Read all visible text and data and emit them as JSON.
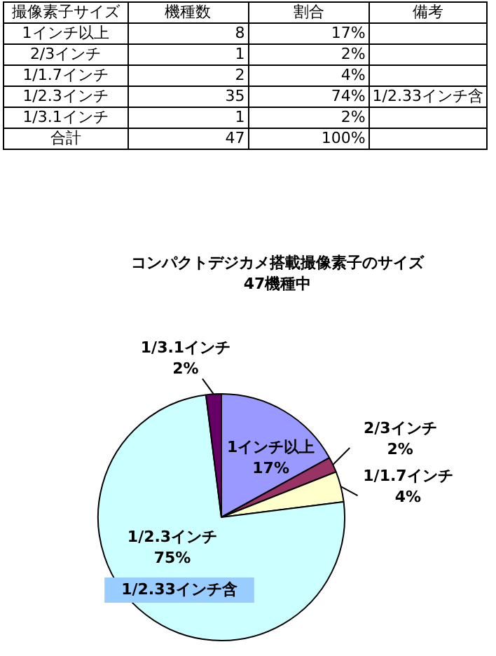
{
  "chart_data": [
    {
      "type": "other",
      "categories": [
        "撮像素子サイズ",
        "機種数",
        "割合",
        "備考"
      ],
      "annotations": [
        "1インチ以上",
        "8",
        "17%",
        null,
        "2/3インチ",
        "1",
        "2%",
        null,
        "1/1.7インチ",
        "2",
        "4%",
        null,
        "1/2.3インチ",
        "35",
        "74%",
        "1/2.33インチ含",
        "1/3.1インチ",
        "1",
        "2%",
        null,
        "合計",
        "47",
        "100%",
        null
      ]
    },
    {
      "type": "pie",
      "title": "コンパクトデジカメ搭載撮像素子のサイズ",
      "subtitle": "47機種中",
      "categories": [
        "1インチ以上",
        "2/3インチ",
        "1/1.7インチ",
        "1/2.3インチ",
        "1/3.1インチ"
      ],
      "values": [
        17,
        2,
        4,
        75,
        2
      ],
      "value_labels": [
        "17%",
        "2%",
        "4%",
        "75%",
        "2%"
      ],
      "colors": [
        "#9999ff",
        "#993366",
        "#ffffcc",
        "#ccffff",
        "#660066"
      ],
      "annotations": [
        "1/2.33インチ含"
      ]
    }
  ]
}
